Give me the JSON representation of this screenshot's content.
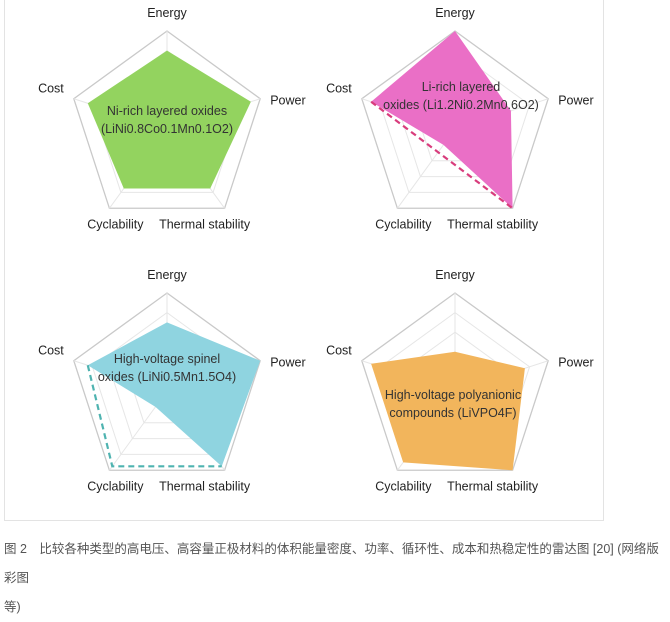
{
  "chart_data": [
    {
      "type": "radar",
      "axes": [
        "Energy",
        "Power",
        "Thermal stability",
        "Cyclability",
        "Cost"
      ],
      "title_lines": [
        "Ni-rich layered oxides",
        "(LiNi0.8Co0.1Mn0.1O2)"
      ],
      "values": [
        0.8,
        0.9,
        0.75,
        0.75,
        0.85
      ],
      "range": [
        0,
        1
      ],
      "color": "#93d35f",
      "dashed": []
    },
    {
      "type": "radar",
      "axes": [
        "Energy",
        "Power",
        "Thermal stability",
        "Cyclability",
        "Cost"
      ],
      "title_lines": [
        "Li-rich layered",
        "oxides (Li1.2Ni0.2Mn0.6O2)"
      ],
      "values": [
        1.0,
        0.6,
        1.0,
        0.2,
        0.9
      ],
      "range": [
        0,
        1
      ],
      "color": "#ea6fc6",
      "dash_color": "#d83c7c",
      "dashed": [
        [
          0.9,
          4
        ],
        [
          1.0,
          2
        ]
      ]
    },
    {
      "type": "radar",
      "axes": [
        "Energy",
        "Power",
        "Thermal stability",
        "Cyclability",
        "Cost"
      ],
      "title_lines": [
        "High-voltage spinel",
        "oxides (LiNi0.5Mn1.5O4)"
      ],
      "values": [
        0.7,
        1.0,
        0.95,
        0.2,
        0.85
      ],
      "range": [
        0,
        1
      ],
      "color": "#8fd4e0",
      "dash_color": "#4fb3b0",
      "dashed": [
        [
          0.85,
          4
        ],
        [
          0.95,
          3
        ],
        [
          0.95,
          2
        ]
      ]
    },
    {
      "type": "radar",
      "axes": [
        "Energy",
        "Power",
        "Thermal stability",
        "Cyclability",
        "Cost"
      ],
      "title_lines": [
        "High-voltage polyanionic",
        "compounds (LiVPO4F)"
      ],
      "values": [
        0.4,
        0.75,
        1.0,
        0.9,
        0.9
      ],
      "range": [
        0,
        1
      ],
      "color": "#f2b55c",
      "dashed": []
    }
  ],
  "caption": {
    "line1": "图 2　比较各种类型的高电压、高容量正极材料的体积能量密度、功率、循环性、成本和热稳定性的雷达图 [20] (网络版彩图",
    "line2": "等)"
  }
}
